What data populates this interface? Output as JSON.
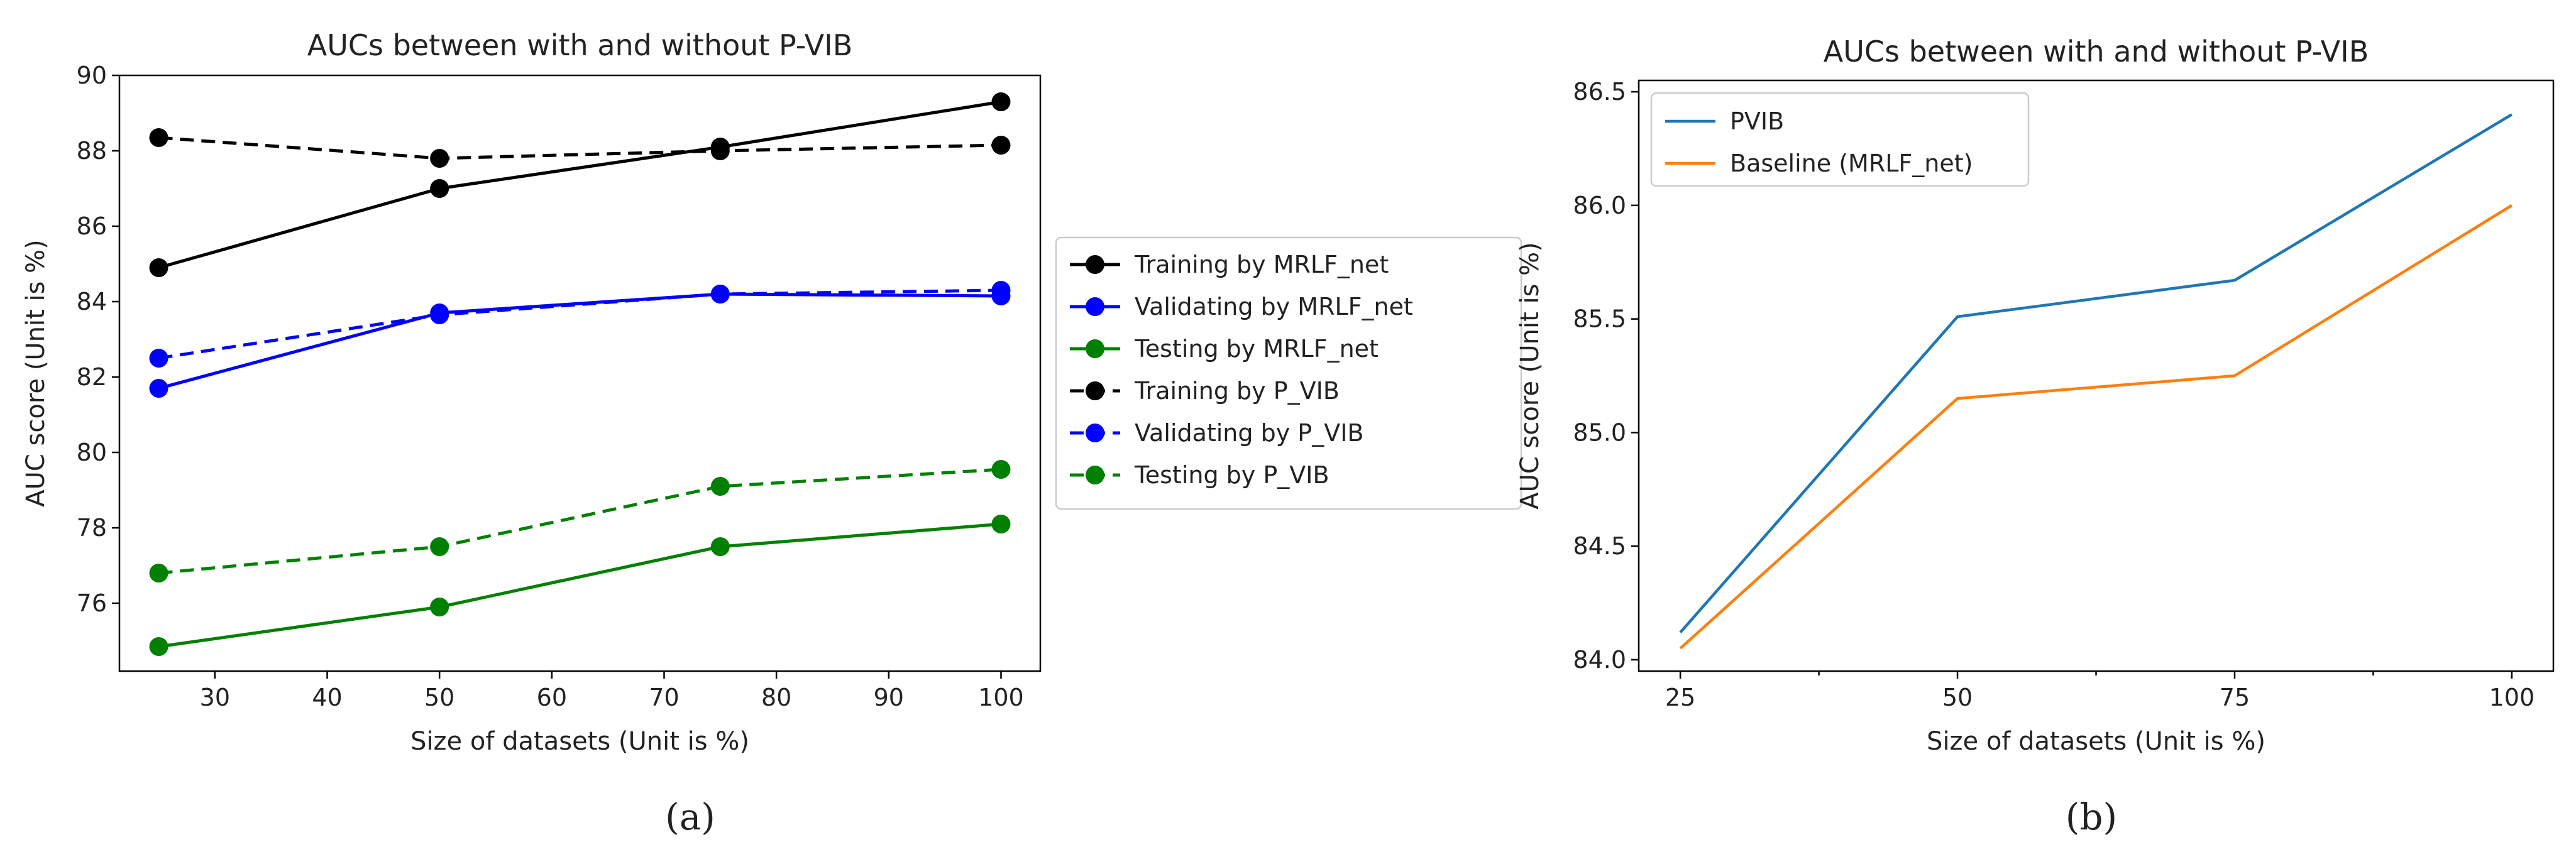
{
  "chart_data": [
    {
      "type": "line",
      "title": "AUCs between with and without P-VIB",
      "xlabel": "Size of datasets (Unit is %)",
      "ylabel": "AUC  score (Unit is %)",
      "xlim": [
        21.5,
        103.5
      ],
      "ylim": [
        74.2,
        90.0
      ],
      "xticks": [
        30,
        40,
        50,
        60,
        70,
        80,
        90,
        100
      ],
      "yticks": [
        76,
        78,
        80,
        82,
        84,
        86,
        88,
        90
      ],
      "x": [
        25,
        50,
        75,
        100
      ],
      "legend_position": "outside-right",
      "caption": "(a)",
      "series": [
        {
          "name": "Training by MRLF_net",
          "color": "#000000",
          "dashed": false,
          "values": [
            84.9,
            87.0,
            88.1,
            89.3
          ]
        },
        {
          "name": "Validating by MRLF_net",
          "color": "#0000ff",
          "dashed": false,
          "values": [
            81.7,
            83.7,
            84.2,
            84.15
          ]
        },
        {
          "name": "Testing by MRLF_net",
          "color": "#008000",
          "dashed": false,
          "values": [
            74.85,
            75.9,
            77.5,
            78.1
          ]
        },
        {
          "name": "Training by P_VIB",
          "color": "#000000",
          "dashed": true,
          "values": [
            88.35,
            87.8,
            88.0,
            88.15
          ]
        },
        {
          "name": "Validating by P_VIB",
          "color": "#0000ff",
          "dashed": true,
          "values": [
            82.5,
            83.65,
            84.2,
            84.3
          ]
        },
        {
          "name": "Testing by P_VIB",
          "color": "#008000",
          "dashed": true,
          "values": [
            76.8,
            77.5,
            79.1,
            79.55
          ]
        }
      ]
    },
    {
      "type": "line",
      "title": "AUCs between with and without P-VIB",
      "xlabel": "Size of datasets (Unit is %)",
      "ylabel": "AUC  score (Unit is %)",
      "xlim": [
        21.25,
        103.75
      ],
      "ylim": [
        83.95,
        86.55
      ],
      "xticks": [
        25,
        50,
        75,
        100
      ],
      "minor_xticks": [
        37.5,
        62.5,
        87.5
      ],
      "yticks": [
        "84.0",
        "84.5",
        "85.0",
        "85.5",
        "86.0",
        "86.5"
      ],
      "x": [
        25,
        50,
        75,
        100
      ],
      "legend_position": "top-left",
      "caption": "(b)",
      "series": [
        {
          "name": "PVIB",
          "color": "#1f77b4",
          "dashed": false,
          "values": [
            84.12,
            85.51,
            85.67,
            86.4
          ]
        },
        {
          "name": "Baseline (MRLF_net)",
          "color": "#ff7f0e",
          "dashed": false,
          "values": [
            84.05,
            85.15,
            85.25,
            86.0
          ]
        }
      ]
    }
  ]
}
